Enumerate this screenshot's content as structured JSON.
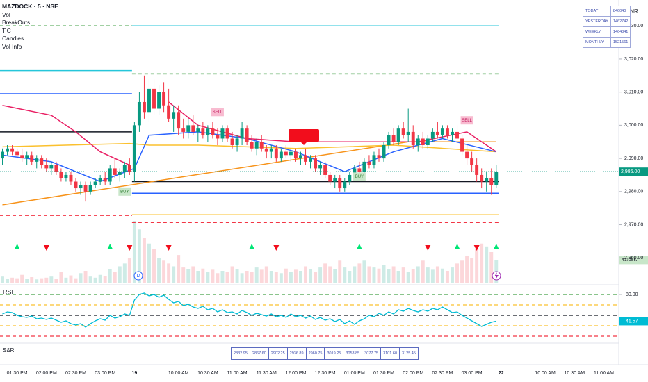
{
  "header": {
    "title": "MAZDOCK · 5 · NSE",
    "indicators": [
      "Vol",
      "BreakOuts",
      "T.C",
      "Candles",
      "Vol Info"
    ]
  },
  "currency": "INR",
  "vol_table": {
    "rows": [
      [
        "TODAY",
        "846040"
      ],
      [
        "YESTERDAY",
        "1462742"
      ],
      [
        "WEEKLY",
        "1464841"
      ],
      [
        "MONTHLY",
        "1521561"
      ]
    ]
  },
  "sr_label": "S&R",
  "sr_table": [
    "2832.95",
    "2867.60",
    "2902.25",
    "2936.89",
    "2960.75",
    "3019.25",
    "3053.85",
    "3077.75",
    "3101.60",
    "3125.45"
  ],
  "chart_data": {
    "type": "candlestick",
    "categories": [
      null,
      null,
      null,
      "01:30 PM",
      null,
      null,
      null,
      null,
      null,
      "02:00 PM",
      null,
      null,
      null,
      null,
      null,
      "02:30 PM",
      null,
      null,
      null,
      null,
      null,
      "03:00 PM",
      null,
      null,
      null,
      null,
      null,
      "19",
      null,
      null,
      null,
      null,
      null,
      null,
      null,
      null,
      "10:00 AM",
      null,
      null,
      null,
      null,
      null,
      "10:30 AM",
      null,
      null,
      null,
      null,
      null,
      "11:00 AM",
      null,
      null,
      null,
      null,
      null,
      "11:30 AM",
      null,
      null,
      null,
      null,
      null,
      "12:00 PM",
      null,
      null,
      null,
      null,
      null,
      "12:30 PM",
      null,
      null,
      null,
      null,
      null,
      "01:00 PM",
      null,
      null,
      null,
      null,
      null,
      "01:30 PM",
      null,
      null,
      null,
      null,
      null,
      "02:00 PM",
      null,
      null,
      null,
      null,
      null,
      "02:30 PM",
      null,
      null,
      null,
      null,
      null,
      "03:00 PM",
      null,
      null,
      null,
      null,
      null,
      "22",
      null,
      null,
      null,
      null,
      null,
      null,
      null,
      null,
      "10:00 AM",
      null,
      null,
      null,
      null,
      null,
      "10:30 AM",
      null,
      null,
      null,
      null,
      null,
      "11:00 AM"
    ],
    "ohlc": [
      [
        2990,
        2993,
        2988,
        2992
      ],
      [
        2992,
        2994,
        2991,
        2993
      ],
      [
        2993,
        2994,
        2991,
        2992
      ],
      [
        2992,
        2993,
        2990,
        2991
      ],
      [
        2991,
        2993,
        2989,
        2990
      ],
      [
        2990,
        2992,
        2988,
        2991
      ],
      [
        2991,
        2992,
        2988,
        2989
      ],
      [
        2989,
        2991,
        2987,
        2990
      ],
      [
        2990,
        2991,
        2987,
        2988
      ],
      [
        2988,
        2990,
        2986,
        2987
      ],
      [
        2987,
        2989,
        2985,
        2988
      ],
      [
        2988,
        2989,
        2985,
        2986
      ],
      [
        2986,
        2987,
        2983,
        2984
      ],
      [
        2984,
        2986,
        2983,
        2985
      ],
      [
        2985,
        2986,
        2982,
        2983
      ],
      [
        2983,
        2984,
        2980,
        2981
      ],
      [
        2981,
        2983,
        2979,
        2982
      ],
      [
        2982,
        2983,
        2977,
        2980
      ],
      [
        2980,
        2983,
        2979,
        2982
      ],
      [
        2982,
        2984,
        2981,
        2983
      ],
      [
        2983,
        2985,
        2982,
        2984
      ],
      [
        2984,
        2986,
        2982,
        2983
      ],
      [
        2983,
        2988,
        2982,
        2987
      ],
      [
        2987,
        2990,
        2984,
        2985
      ],
      [
        2985,
        2987,
        2983,
        2986
      ],
      [
        2986,
        2989,
        2984,
        2988
      ],
      [
        2988,
        2990,
        2985,
        2986
      ],
      [
        2986,
        3001,
        2983,
        3000
      ],
      [
        3000,
        3010,
        2998,
        3007
      ],
      [
        3007,
        3015,
        3002,
        3004
      ],
      [
        3004,
        3014,
        3001,
        3011
      ],
      [
        3011,
        3014,
        3003,
        3005
      ],
      [
        3005,
        3012,
        3003,
        3010
      ],
      [
        3010,
        3013,
        3004,
        3006
      ],
      [
        3006,
        3011,
        3001,
        3002
      ],
      [
        3002,
        3006,
        2998,
        3004
      ],
      [
        3004,
        3006,
        2997,
        2999
      ],
      [
        2999,
        3002,
        2996,
        2998
      ],
      [
        2998,
        3002,
        2996,
        3000
      ],
      [
        3000,
        3003,
        2997,
        2998
      ],
      [
        2998,
        3000,
        2995,
        2999
      ],
      [
        2999,
        3001,
        2996,
        2997
      ],
      [
        2997,
        3000,
        2995,
        2999
      ],
      [
        2999,
        3001,
        2996,
        2997
      ],
      [
        2997,
        2999,
        2994,
        2996
      ],
      [
        2996,
        3000,
        2995,
        2999
      ],
      [
        2999,
        3000,
        2995,
        2996
      ],
      [
        2996,
        2998,
        2993,
        2994
      ],
      [
        2994,
        2997,
        2992,
        2996
      ],
      [
        2996,
        3001,
        2994,
        2999
      ],
      [
        2999,
        3000,
        2994,
        2995
      ],
      [
        2995,
        2997,
        2992,
        2993
      ],
      [
        2993,
        2996,
        2991,
        2995
      ],
      [
        2995,
        2997,
        2992,
        2993
      ],
      [
        2993,
        2994,
        2990,
        2992
      ],
      [
        2992,
        2994,
        2990,
        2993
      ],
      [
        2993,
        2994,
        2989,
        2990
      ],
      [
        2990,
        2993,
        2989,
        2992
      ],
      [
        2992,
        2994,
        2990,
        2991
      ],
      [
        2991,
        2993,
        2989,
        2992
      ],
      [
        2992,
        2993,
        2989,
        2990
      ],
      [
        2990,
        2992,
        2988,
        2991
      ],
      [
        2991,
        2993,
        2988,
        2989
      ],
      [
        2989,
        2991,
        2987,
        2990
      ],
      [
        2990,
        2991,
        2986,
        2987
      ],
      [
        2987,
        2989,
        2985,
        2988
      ],
      [
        2988,
        2989,
        2984,
        2985
      ],
      [
        2985,
        2986,
        2982,
        2983
      ],
      [
        2983,
        2985,
        2981,
        2984
      ],
      [
        2984,
        2985,
        2980,
        2981
      ],
      [
        2981,
        2984,
        2980,
        2983
      ],
      [
        2983,
        2986,
        2982,
        2985
      ],
      [
        2985,
        2988,
        2984,
        2987
      ],
      [
        2987,
        2989,
        2985,
        2986
      ],
      [
        2986,
        2990,
        2985,
        2989
      ],
      [
        2989,
        2991,
        2987,
        2988
      ],
      [
        2988,
        2992,
        2987,
        2991
      ],
      [
        2991,
        2993,
        2989,
        2990
      ],
      [
        2990,
        2995,
        2989,
        2994
      ],
      [
        2994,
        2998,
        2993,
        2997
      ],
      [
        2997,
        2999,
        2994,
        2995
      ],
      [
        2995,
        3000,
        2994,
        2999
      ],
      [
        2999,
        3001,
        2996,
        2997
      ],
      [
        2997,
        3005,
        2995,
        2998
      ],
      [
        2998,
        3000,
        2993,
        2994
      ],
      [
        2994,
        2997,
        2992,
        2996
      ],
      [
        2996,
        2998,
        2993,
        2994
      ],
      [
        2994,
        2997,
        2993,
        2996
      ],
      [
        2996,
        2999,
        2995,
        2998
      ],
      [
        2998,
        3001,
        2996,
        2997
      ],
      [
        2997,
        3000,
        2996,
        2999
      ],
      [
        2999,
        3000,
        2996,
        2997
      ],
      [
        2997,
        2999,
        2995,
        2998
      ],
      [
        2998,
        3000,
        2995,
        2996
      ],
      [
        2996,
        2997,
        2991,
        2992
      ],
      [
        2992,
        2994,
        2988,
        2990
      ],
      [
        2990,
        2992,
        2986,
        2988
      ],
      [
        2988,
        2990,
        2983,
        2985
      ],
      [
        2985,
        2987,
        2981,
        2983
      ],
      [
        2983,
        2986,
        2980,
        2984
      ],
      [
        2984,
        2987,
        2979,
        2982
      ],
      [
        2982,
        2988,
        2981,
        2986
      ],
      null,
      null,
      null,
      null,
      null,
      null,
      null,
      null,
      null,
      null,
      null,
      null,
      null,
      null,
      null,
      null,
      null,
      null,
      null,
      null,
      null,
      null
    ],
    "volume": [
      12,
      8,
      10,
      9,
      15,
      8,
      11,
      7,
      9,
      10,
      12,
      8,
      20,
      10,
      14,
      9,
      18,
      22,
      12,
      10,
      15,
      13,
      25,
      20,
      30,
      35,
      45,
      110,
      95,
      80,
      70,
      60,
      45,
      40,
      35,
      30,
      50,
      28,
      25,
      30,
      22,
      26,
      20,
      24,
      18,
      22,
      20,
      30,
      25,
      18,
      22,
      20,
      28,
      24,
      30,
      22,
      20,
      18,
      26,
      20,
      24,
      22,
      30,
      25,
      20,
      28,
      35,
      30,
      25,
      40,
      28,
      22,
      30,
      35,
      40,
      30,
      28,
      26,
      32,
      25,
      30,
      22,
      28,
      20,
      25,
      30,
      40,
      28,
      24,
      30,
      26,
      22,
      28,
      35,
      40,
      48,
      45,
      60,
      70,
      65,
      55,
      41.08,
      null,
      null,
      null,
      null,
      null,
      null,
      null,
      null,
      null,
      null,
      null,
      null,
      null,
      null,
      null,
      null,
      null,
      null,
      null,
      null,
      null,
      null
    ],
    "volume_tag": {
      "value": 41.08,
      "label": "41.08K"
    },
    "colors": {
      "up": "#089981",
      "down": "#f23645"
    },
    "ylim": [
      2952.3,
      3037.8
    ],
    "yticks": [
      {
        "value": 2960,
        "label": "2,960.00"
      },
      {
        "value": 2970,
        "label": "2,970.00"
      },
      {
        "value": 2980,
        "label": "2,980.00"
      },
      {
        "value": 2990,
        "label": "2,990.00"
      },
      {
        "value": 3000,
        "label": "3,000.00"
      },
      {
        "value": 3010,
        "label": "3,010.00"
      },
      {
        "value": 3020,
        "label": "3,020.00"
      },
      {
        "value": 3030,
        "label": "3,030.00"
      }
    ],
    "price_tag": {
      "value": 2986,
      "label": "2,986.00"
    },
    "levels": [
      {
        "value": 3030,
        "x": [
          0,
          26
        ],
        "color": "#43a047",
        "dash": true
      },
      {
        "value": 3016.5,
        "x": [
          0,
          26
        ],
        "color": "#26c6da",
        "dash": false
      },
      {
        "value": 3030,
        "x": [
          27,
          101
        ],
        "color": "#26c6da",
        "dash": false
      },
      {
        "value": 3015.5,
        "x": [
          27,
          101
        ],
        "color": "#43a047",
        "dash": true
      },
      {
        "value": 3009.5,
        "x": [
          0,
          26
        ],
        "color": "#2962ff",
        "dash": false
      },
      {
        "value": 2979.5,
        "x": [
          27,
          101
        ],
        "color": "#2962ff",
        "dash": false
      },
      {
        "value": 2998,
        "x": [
          0,
          26
        ],
        "color": "#131722",
        "dash": false
      },
      {
        "value": 2983,
        "x": [
          27,
          101
        ],
        "color": "#131722",
        "dash": false
      },
      {
        "value": 2973,
        "x": [
          27,
          101
        ],
        "color": "#fbc02d",
        "dash": false
      },
      {
        "value": 2972.8,
        "x": [
          0,
          26
        ],
        "color": "#f23645",
        "dash": true
      },
      {
        "value": 2970.7,
        "x": [
          27,
          101
        ],
        "color": "#f23645",
        "dash": true
      }
    ],
    "lines": [
      {
        "color": "#f7931a",
        "x": [
          0,
          83,
          101
        ],
        "values": [
          2976,
          2995,
          2995
        ]
      },
      {
        "color": "#fbc02d",
        "x": [
          0,
          26,
          30,
          40,
          60,
          80,
          101
        ],
        "values": [
          2993.5,
          2994.5,
          2994,
          2994,
          2993,
          2994,
          2992
        ]
      },
      {
        "color": "#2962ff",
        "x": [
          0,
          10,
          20,
          27,
          30,
          40,
          50,
          60,
          70,
          80,
          90,
          101
        ],
        "values": [
          2991,
          2989,
          2983,
          2987,
          2997,
          2998,
          2996,
          2992,
          2986,
          2992,
          2996,
          2992
        ]
      },
      {
        "color": "#e91e63",
        "x": [
          0,
          10,
          15,
          20,
          26
        ],
        "values": [
          3006,
          3003,
          2998,
          2992,
          2988
        ]
      },
      {
        "color": "#e91e63",
        "x": [
          34,
          40,
          50,
          60,
          85,
          95,
          101
        ],
        "values": [
          3007,
          3000,
          2996,
          2995,
          2995,
          2998,
          2992
        ]
      }
    ],
    "annotations": [
      {
        "text": "BUY",
        "x": 25,
        "y": 2980,
        "kind": "buy"
      },
      {
        "text": "SELL",
        "x": 44,
        "y": 3004,
        "kind": "sell"
      },
      {
        "text": "BUY",
        "x": 73,
        "y": 2984.5,
        "kind": "buy"
      },
      {
        "text": "SELL",
        "x": 95,
        "y": 3001.5,
        "kind": "sell"
      }
    ],
    "rsi": {
      "title": "RSI",
      "color": "#00bcd4",
      "values": [
        52,
        55,
        54,
        50,
        48,
        47,
        49,
        45,
        46,
        44,
        46,
        43,
        40,
        42,
        38,
        36,
        38,
        33,
        38,
        42,
        45,
        43,
        50,
        46,
        48,
        52,
        50,
        72,
        80,
        82,
        78,
        80,
        76,
        79,
        73,
        68,
        70,
        64,
        66,
        62,
        60,
        63,
        58,
        60,
        55,
        58,
        54,
        55,
        52,
        57,
        54,
        50,
        53,
        51,
        49,
        52,
        48,
        50,
        47,
        52,
        48,
        50,
        46,
        49,
        44,
        47,
        43,
        45,
        41,
        44,
        38,
        42,
        37,
        42,
        45,
        50,
        48,
        53,
        50,
        55,
        52,
        58,
        56,
        60,
        57,
        55,
        58,
        56,
        60,
        58,
        62,
        58,
        54,
        55,
        50,
        46,
        42,
        38,
        34,
        37,
        40,
        41.57,
        null,
        null,
        null,
        null,
        null,
        null,
        null,
        null,
        null,
        null,
        null,
        null,
        null,
        null,
        null,
        null,
        null,
        null,
        null,
        null,
        null,
        null
      ],
      "ylim": [
        12,
        92
      ],
      "yticks": [
        {
          "value": 80,
          "label": "80.00"
        }
      ],
      "tag": {
        "value": 41.57,
        "label": "41.57"
      },
      "levels": [
        {
          "value": 80,
          "color": "#43a047"
        },
        {
          "value": 65,
          "color": "#fbc02d"
        },
        {
          "value": 50,
          "color": "#131722"
        },
        {
          "value": 35,
          "color": "#fbc02d"
        },
        {
          "value": 20,
          "color": "#f23645"
        }
      ]
    }
  }
}
